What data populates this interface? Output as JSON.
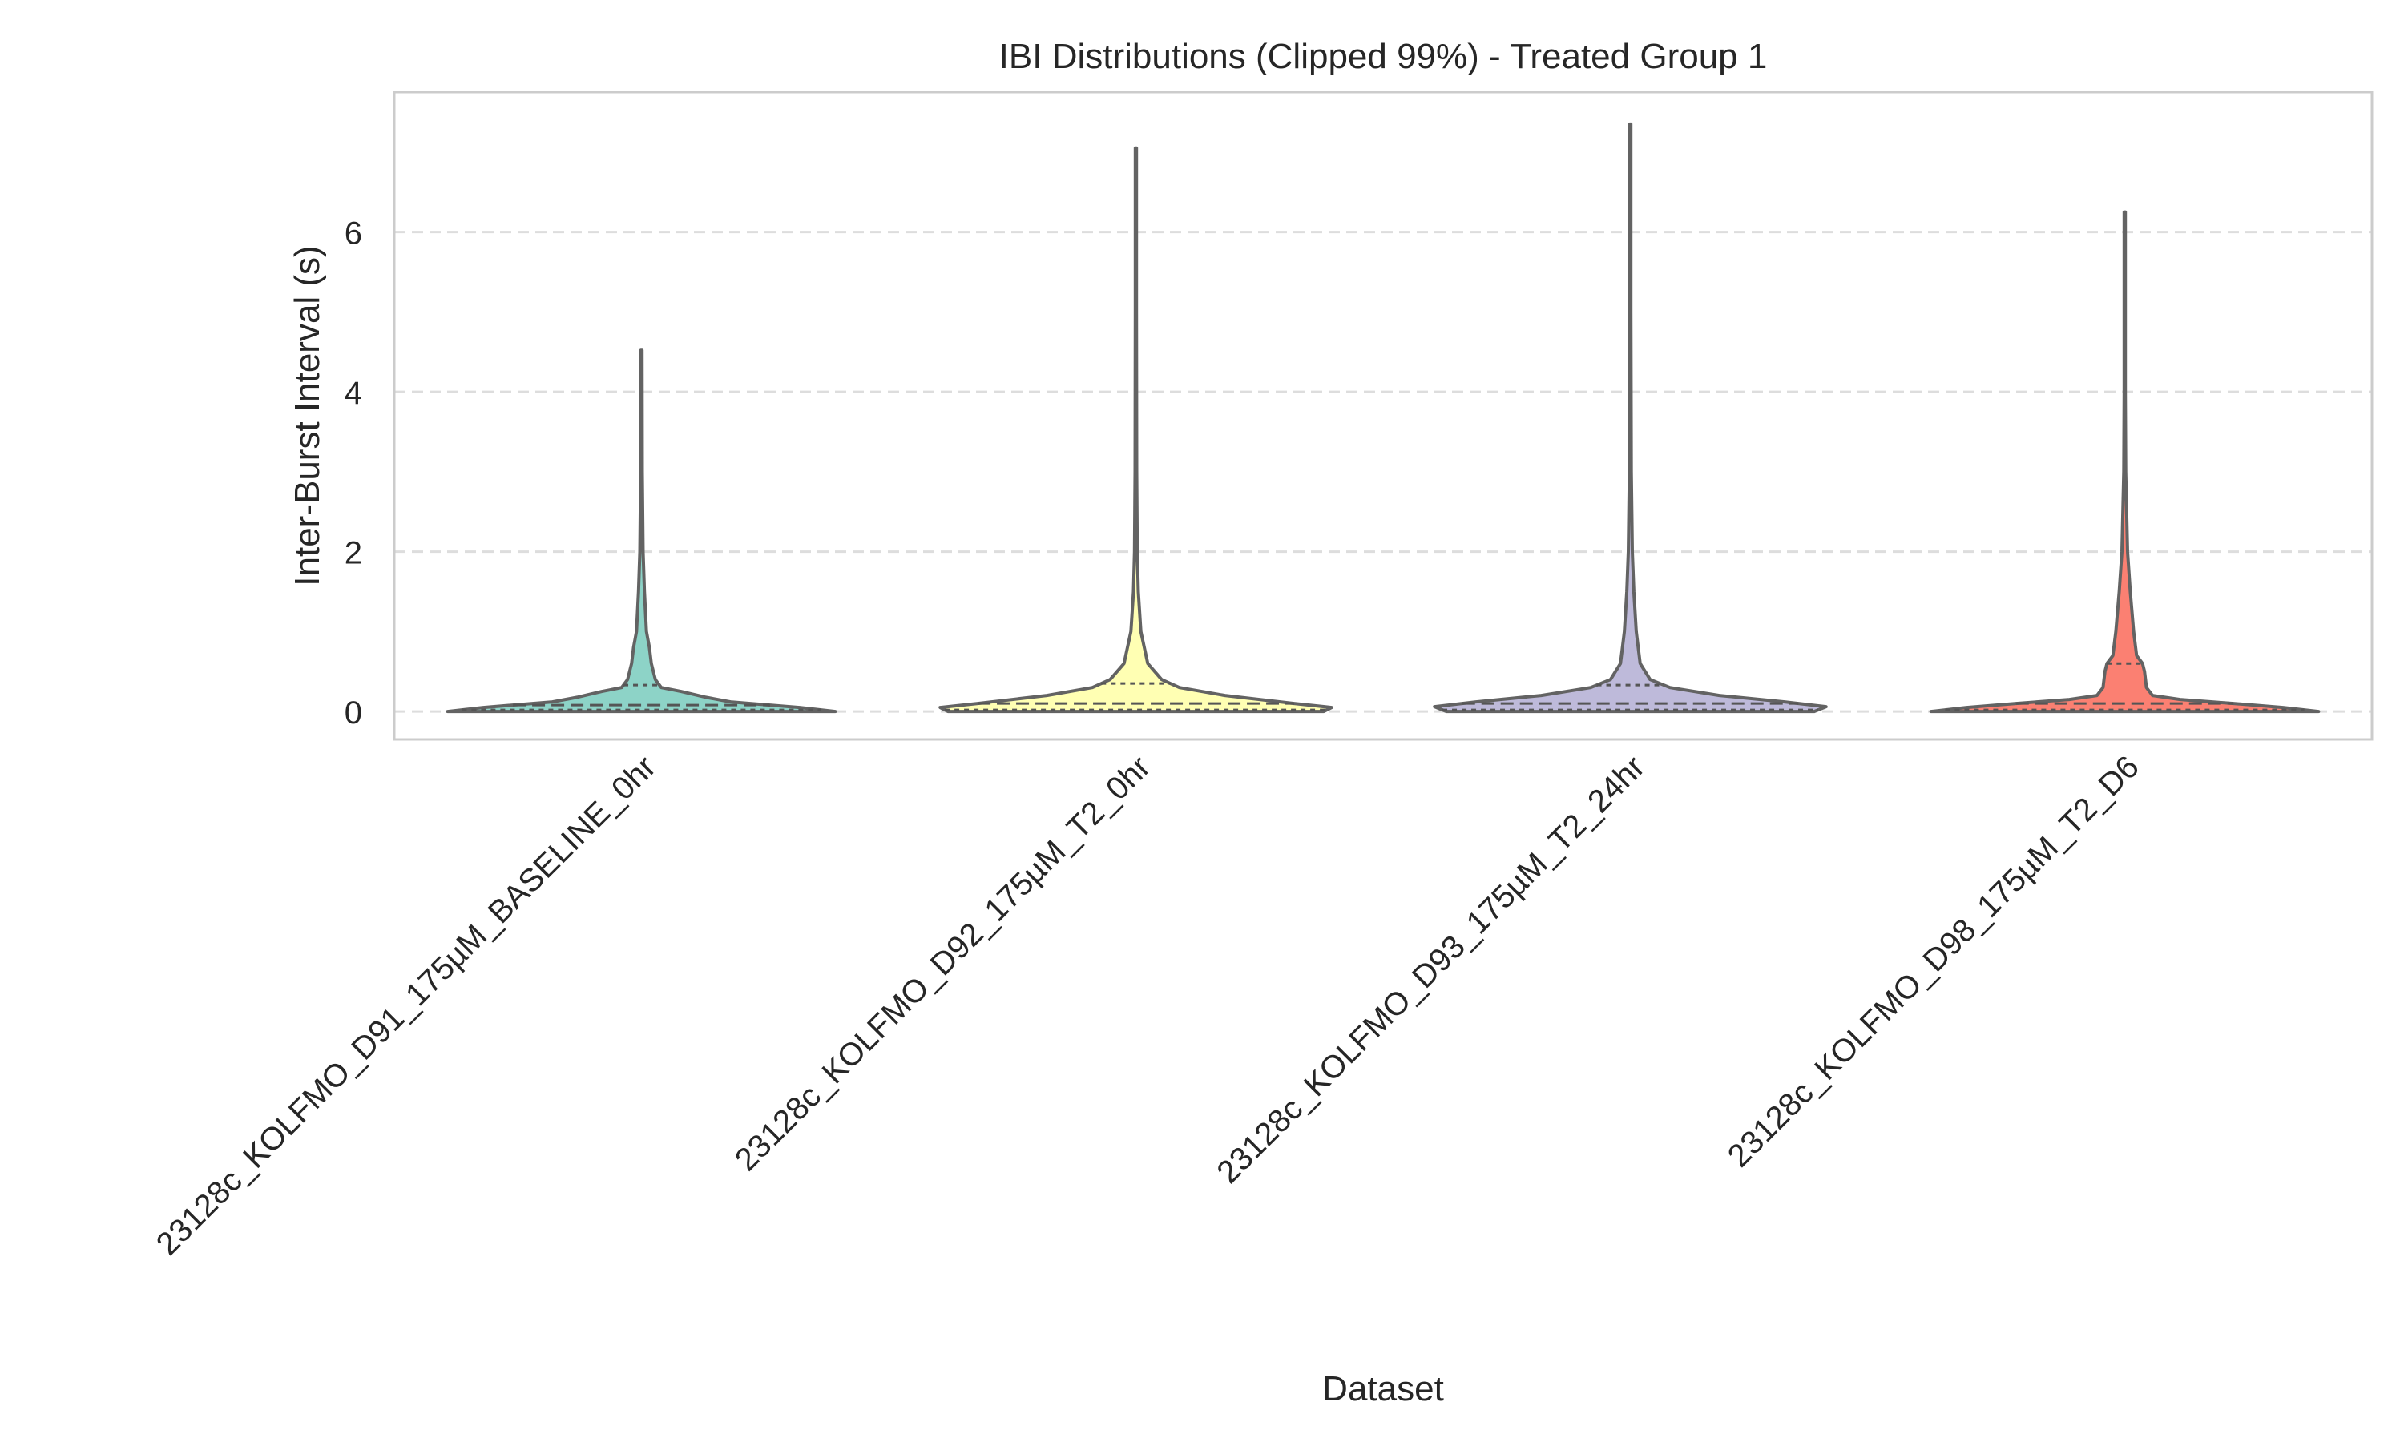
{
  "chart_data": {
    "type": "violin",
    "title": "IBI Distributions (Clipped 99%) - Treated Group 1",
    "xlabel": "Dataset",
    "ylabel": "Inter-Burst Interval (s)",
    "ylim": [
      -0.35,
      7.75
    ],
    "yticks": [
      0,
      2,
      4,
      6
    ],
    "grid": "y-dashed",
    "categories": [
      "23128c_KOLFMO_D91_175µM_BASELINE_0hr",
      "23128c_KOLFMO_D92_175µM_T2_0hr",
      "23128c_KOLFMO_D93_175µM_T2_24hr",
      "23128c_KOLFMO_D98_175µM_T2_D6"
    ],
    "series": [
      {
        "category": "23128c_KOLFMO_D91_175µM_BASELINE_0hr",
        "color": "#8dd3c7",
        "min": 0.0,
        "max": 4.52,
        "q1": 0.02,
        "median": 0.08,
        "q3": 0.33,
        "profile": [
          [
            0.0,
            0.98
          ],
          [
            0.05,
            0.8
          ],
          [
            0.12,
            0.45
          ],
          [
            0.18,
            0.32
          ],
          [
            0.25,
            0.2
          ],
          [
            0.3,
            0.1
          ],
          [
            0.4,
            0.07
          ],
          [
            0.6,
            0.05
          ],
          [
            0.8,
            0.04
          ],
          [
            1.0,
            0.025
          ],
          [
            1.5,
            0.015
          ],
          [
            2.0,
            0.008
          ],
          [
            3.0,
            0.004
          ],
          [
            4.52,
            0.003
          ]
        ]
      },
      {
        "category": "23128c_KOLFMO_D92_175µM_T2_0hr",
        "color": "#ffffb3",
        "min": 0.0,
        "max": 7.05,
        "q1": 0.02,
        "median": 0.1,
        "q3": 0.35,
        "profile": [
          [
            0.0,
            0.95
          ],
          [
            0.05,
            0.99
          ],
          [
            0.1,
            0.8
          ],
          [
            0.2,
            0.45
          ],
          [
            0.3,
            0.22
          ],
          [
            0.4,
            0.13
          ],
          [
            0.6,
            0.06
          ],
          [
            1.0,
            0.025
          ],
          [
            1.5,
            0.012
          ],
          [
            2.0,
            0.007
          ],
          [
            3.0,
            0.004
          ],
          [
            5.0,
            0.003
          ],
          [
            7.05,
            0.003
          ]
        ]
      },
      {
        "category": "23128c_KOLFMO_D93_175µM_T2_24hr",
        "color": "#bebada",
        "min": 0.0,
        "max": 7.35,
        "q1": 0.02,
        "median": 0.1,
        "q3": 0.33,
        "profile": [
          [
            0.0,
            0.93
          ],
          [
            0.06,
            0.99
          ],
          [
            0.12,
            0.78
          ],
          [
            0.2,
            0.45
          ],
          [
            0.3,
            0.2
          ],
          [
            0.4,
            0.1
          ],
          [
            0.6,
            0.05
          ],
          [
            1.0,
            0.03
          ],
          [
            1.5,
            0.018
          ],
          [
            2.0,
            0.01
          ],
          [
            3.0,
            0.005
          ],
          [
            5.0,
            0.003
          ],
          [
            7.35,
            0.003
          ]
        ]
      },
      {
        "category": "23128c_KOLFMO_D98_175µM_T2_D6",
        "color": "#fb8072",
        "min": 0.0,
        "max": 6.25,
        "q1": 0.02,
        "median": 0.1,
        "q3": 0.6,
        "profile": [
          [
            0.0,
            0.98
          ],
          [
            0.05,
            0.8
          ],
          [
            0.1,
            0.55
          ],
          [
            0.15,
            0.28
          ],
          [
            0.2,
            0.14
          ],
          [
            0.3,
            0.11
          ],
          [
            0.5,
            0.1
          ],
          [
            0.6,
            0.09
          ],
          [
            0.7,
            0.06
          ],
          [
            1.0,
            0.045
          ],
          [
            1.5,
            0.028
          ],
          [
            2.0,
            0.014
          ],
          [
            3.0,
            0.005
          ],
          [
            4.0,
            0.003
          ],
          [
            6.25,
            0.003
          ]
        ]
      }
    ]
  }
}
